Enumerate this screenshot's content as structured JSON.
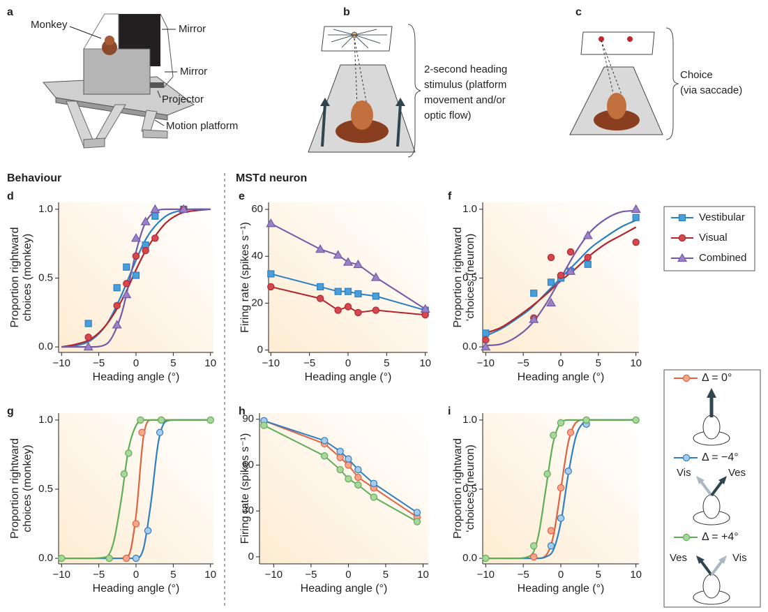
{
  "panels": {
    "a": {
      "letter": "a",
      "labels": [
        "Monkey",
        "Mirror",
        "Mirror",
        "Projector",
        "Motion platform"
      ]
    },
    "b": {
      "letter": "b",
      "caption": [
        "2-second heading",
        "stimulus (platform",
        "movement and/or",
        "optic flow)"
      ]
    },
    "c": {
      "letter": "c",
      "caption": [
        "Choice",
        "(via saccade)"
      ]
    }
  },
  "section_titles": [
    "Behaviour",
    "MSTd neuron"
  ],
  "legend_illustration": {
    "minus4": [
      "Vis",
      "Ves"
    ],
    "plus4": [
      "Ves",
      "Vis"
    ]
  },
  "chart_data": [
    {
      "type": "line",
      "panel": "d",
      "xlabel": "Heading angle (°)",
      "ylabel": [
        "Proportion rightward",
        "choices (monkey)"
      ],
      "xlim": [
        -10.4,
        10.4
      ],
      "ylim": [
        -0.04,
        1.05
      ],
      "xticks": [
        {
          "value": -10,
          "label": "−10"
        },
        {
          "value": -5,
          "label": "−5"
        },
        0,
        5,
        10
      ],
      "yticks": [
        {
          "value": 0,
          "label": "0.0"
        },
        {
          "value": 0.5,
          "label": "0.5"
        },
        {
          "value": 1,
          "label": "1.0"
        }
      ],
      "series": [
        {
          "name": "Vestibular",
          "color": "#2a7fc0",
          "fill": "#4a9fdb",
          "marker": "square",
          "x": [
            -6.4,
            -2.56,
            -1.28,
            0,
            1.28,
            2.56,
            6.4
          ],
          "values": [
            0.17,
            0.43,
            0.58,
            0.52,
            0.74,
            0.95,
            1.0
          ],
          "fit": {
            "x": [
              -10,
              -8,
              -6,
              -4,
              -2,
              -1,
              0,
              1,
              2,
              4,
              6,
              8,
              10
            ],
            "values": [
              0,
              0.01,
              0.05,
              0.16,
              0.37,
              0.5,
              0.63,
              0.75,
              0.84,
              0.95,
              0.99,
              1,
              1
            ]
          }
        },
        {
          "name": "Visual",
          "color": "#b3242c",
          "fill": "#d4484f",
          "marker": "circle",
          "x": [
            -6.4,
            -2.56,
            -1.28,
            0,
            1.28,
            2.56,
            6.4
          ],
          "values": [
            0.07,
            0.3,
            0.46,
            0.66,
            0.7,
            0.79,
            1.0
          ],
          "fit": {
            "x": [
              -10,
              -8,
              -6,
              -4,
              -2,
              -1,
              0,
              1,
              2,
              4,
              6,
              8,
              10
            ],
            "values": [
              0,
              0.02,
              0.06,
              0.16,
              0.33,
              0.44,
              0.56,
              0.67,
              0.76,
              0.9,
              0.97,
              0.99,
              1
            ]
          }
        },
        {
          "name": "Combined",
          "color": "#7659a6",
          "fill": "#9a82c8",
          "marker": "triangle",
          "x": [
            -6.4,
            -2.56,
            -1.28,
            0,
            1.28,
            2.56,
            6.4
          ],
          "values": [
            0,
            0.16,
            0.38,
            0.79,
            0.91,
            1.0,
            1.0
          ],
          "fit": {
            "x": [
              -10,
              -8,
              -6,
              -4,
              -2,
              -1,
              0,
              1,
              2,
              4,
              6,
              8,
              10
            ],
            "values": [
              0,
              0,
              0,
              0.02,
              0.23,
              0.45,
              0.69,
              0.87,
              0.96,
              1,
              1,
              1,
              1
            ]
          }
        }
      ]
    },
    {
      "type": "line",
      "panel": "e",
      "xlabel": "Heading angle (°)",
      "ylabel": [
        "Firing rate (spikes s⁻¹)"
      ],
      "xlim": [
        -10.3,
        10.3
      ],
      "ylim": [
        -1,
        63
      ],
      "xticks": [
        {
          "value": -10,
          "label": "−10"
        },
        {
          "value": -5,
          "label": "−5"
        },
        0,
        5,
        10
      ],
      "yticks": [
        0,
        20,
        40,
        60
      ],
      "series": [
        {
          "color": "#2a7fc0",
          "fill": "#4a9fdb",
          "marker": "square",
          "x": [
            -10,
            -3.6,
            -1.3,
            0,
            1.3,
            3.6,
            10
          ],
          "values": [
            32.5,
            27,
            25,
            25,
            24,
            23,
            17
          ]
        },
        {
          "color": "#b3242c",
          "fill": "#d4484f",
          "marker": "circle",
          "x": [
            -10,
            -3.6,
            -1.3,
            0,
            1.3,
            3.6,
            10
          ],
          "values": [
            27,
            22,
            17,
            18.5,
            16,
            17,
            15
          ]
        },
        {
          "color": "#7659a6",
          "fill": "#9a82c8",
          "marker": "triangle",
          "x": [
            -10,
            -3.6,
            -1.3,
            0,
            1.3,
            3.6,
            10
          ],
          "values": [
            54,
            43,
            40.5,
            37.5,
            36.5,
            31,
            17.5
          ]
        }
      ]
    },
    {
      "type": "line",
      "panel": "f",
      "xlabel": "Heading angle (°)",
      "ylabel": [
        "Proportion rightward",
        "‘choices’ (neuron)"
      ],
      "xlim": [
        -10.4,
        10.4
      ],
      "ylim": [
        -0.04,
        1.05
      ],
      "xticks": [
        {
          "value": -10,
          "label": "−10"
        },
        {
          "value": -5,
          "label": "−5"
        },
        0,
        5,
        10
      ],
      "yticks": [
        {
          "value": 0,
          "label": "0.0"
        },
        {
          "value": 0.5,
          "label": "0.5"
        },
        {
          "value": 1,
          "label": "1.0"
        }
      ],
      "series": [
        {
          "color": "#2a7fc0",
          "fill": "#4a9fdb",
          "marker": "square",
          "x": [
            -10,
            -3.6,
            -1.3,
            0,
            1.3,
            3.6,
            10
          ],
          "values": [
            0.1,
            0.39,
            0.47,
            0.5,
            0.55,
            0.6,
            0.94
          ],
          "fit": {
            "x": [
              -10,
              -8,
              -6,
              -4,
              -2,
              0,
              2,
              4,
              6,
              8,
              10
            ],
            "values": [
              0.08,
              0.13,
              0.2,
              0.28,
              0.39,
              0.5,
              0.61,
              0.72,
              0.8,
              0.87,
              0.92
            ]
          }
        },
        {
          "color": "#b3242c",
          "fill": "#d4484f",
          "marker": "circle",
          "x": [
            -10,
            -3.6,
            -1.3,
            0,
            1.3,
            3.6,
            10
          ],
          "values": [
            0.05,
            0.21,
            0.65,
            0.52,
            0.69,
            0.65,
            0.76
          ],
          "fit": {
            "x": [
              -10,
              -8,
              -6,
              -4,
              -2,
              0,
              2,
              4,
              6,
              8,
              10
            ],
            "values": [
              0.1,
              0.14,
              0.21,
              0.29,
              0.38,
              0.48,
              0.57,
              0.67,
              0.75,
              0.81,
              0.87
            ]
          }
        },
        {
          "color": "#7659a6",
          "fill": "#9a82c8",
          "marker": "triangle",
          "x": [
            -10,
            -3.6,
            -1.3,
            1.3,
            3.6,
            10
          ],
          "values": [
            0,
            0.2,
            0.32,
            0.55,
            0.81,
            1.0
          ],
          "fit": {
            "x": [
              -10,
              -8,
              -6,
              -4,
              -2,
              0,
              2,
              4,
              6,
              8,
              10
            ],
            "values": [
              0.01,
              0.02,
              0.07,
              0.16,
              0.31,
              0.5,
              0.69,
              0.84,
              0.93,
              0.98,
              0.99
            ]
          }
        }
      ]
    },
    {
      "type": "line",
      "panel": "g",
      "xlabel": "Heading angle (°)",
      "ylabel": [
        "Proportion rightward",
        "choices (monkey)"
      ],
      "xlim": [
        -10.4,
        10.4
      ],
      "ylim": [
        -0.04,
        1.05
      ],
      "xticks": [
        {
          "value": -10,
          "label": "−10"
        },
        {
          "value": -5,
          "label": "−5"
        },
        0,
        5,
        10
      ],
      "yticks": [
        {
          "value": 0,
          "label": "0.0"
        },
        {
          "value": 0.5,
          "label": "0.5"
        },
        {
          "value": 1,
          "label": "1.0"
        }
      ],
      "series": [
        {
          "name": "Δ = 0°",
          "color": "#e0623f",
          "fill": "#f5a68c",
          "marker": "circle",
          "x": [
            -1.3,
            0,
            0.8,
            3.4
          ],
          "values": [
            0,
            0.25,
            0.91,
            1.0
          ],
          "fit": {
            "x": [
              -10,
              -6,
              -4,
              -3,
              -2,
              -1,
              0,
              1,
              2,
              3,
              4,
              5,
              6,
              10
            ],
            "values": [
              0,
              0,
              0,
              0,
              0,
              0.02,
              0.31,
              0.88,
              1,
              1,
              1,
              1,
              1,
              1
            ]
          }
        },
        {
          "name": "Δ = −4°",
          "color": "#2f7fc1",
          "fill": "#a7cbec",
          "marker": "circle",
          "x": [
            0,
            1.6,
            3.2
          ],
          "values": [
            0,
            0.2,
            0.91
          ],
          "fit": {
            "x": [
              -10,
              -6,
              -4,
              -3,
              -2,
              -1,
              0,
              1,
              2,
              3,
              4,
              5,
              6,
              10
            ],
            "values": [
              0,
              0,
              0,
              0,
              0,
              0,
              0,
              0.07,
              0.4,
              0.84,
              0.99,
              1,
              1,
              1
            ]
          }
        },
        {
          "name": "Δ = +4°",
          "color": "#5fae55",
          "fill": "#a9d69d",
          "marker": "circle",
          "x": [
            -10,
            -3.6,
            -1.6,
            -1.0,
            0.6,
            3.4,
            10
          ],
          "values": [
            0,
            0,
            0.61,
            0.76,
            1.0,
            1.0,
            1.0
          ],
          "fit": {
            "x": [
              -10,
              -6,
              -4,
              -3,
              -2,
              -1,
              0,
              1,
              2,
              3,
              4,
              5,
              6,
              10
            ],
            "values": [
              0,
              0,
              0.01,
              0.12,
              0.42,
              0.79,
              0.96,
              1,
              1,
              1,
              1,
              1,
              1,
              1
            ]
          }
        }
      ]
    },
    {
      "type": "line",
      "panel": "h",
      "xlabel": "Heading angle (°)",
      "ylabel": [
        "Firing rate (spikes s⁻¹)"
      ],
      "xlim": [
        -11.9,
        10.7
      ],
      "ylim": [
        -4.6,
        94
      ],
      "xticks": [
        {
          "value": -10,
          "label": "−10"
        },
        {
          "value": -5,
          "label": "−5"
        },
        0,
        5,
        10
      ],
      "yticks": [
        0,
        30,
        60,
        90
      ],
      "series": [
        {
          "color": "#e0623f",
          "fill": "#f5a68c",
          "marker": "circle",
          "x": [
            -11.3,
            -3.2,
            -1.1,
            0,
            1.3,
            3.4,
            9.2
          ],
          "values": [
            89,
            74,
            65,
            60,
            52,
            45,
            26
          ]
        },
        {
          "color": "#2f7fc1",
          "fill": "#a7cbec",
          "marker": "circle",
          "x": [
            -11.3,
            -3.2,
            -1.1,
            0,
            1.3,
            3.4,
            9.2
          ],
          "values": [
            89,
            76,
            69,
            64,
            57,
            48,
            29
          ]
        },
        {
          "color": "#5fae55",
          "fill": "#a9d69d",
          "marker": "circle",
          "x": [
            -11.3,
            -3.2,
            -1.1,
            0,
            1.3,
            3.4,
            9.2
          ],
          "values": [
            86,
            66,
            57,
            51,
            47,
            39,
            23
          ]
        }
      ]
    },
    {
      "type": "line",
      "panel": "i",
      "xlabel": "Heading angle (°)",
      "ylabel": [
        "Proportion rightward",
        "‘choices’ (neuron)"
      ],
      "xlim": [
        -10.4,
        10.4
      ],
      "ylim": [
        -0.04,
        1.05
      ],
      "xticks": [
        {
          "value": -10,
          "label": "−10"
        },
        {
          "value": -5,
          "label": "−5"
        },
        0,
        5,
        10
      ],
      "yticks": [
        {
          "value": 0,
          "label": "0.0"
        },
        {
          "value": 0.5,
          "label": "0.5"
        },
        {
          "value": 1,
          "label": "1.0"
        }
      ],
      "series": [
        {
          "color": "#e0623f",
          "fill": "#f5a68c",
          "marker": "circle",
          "x": [
            -3.6,
            -1.3,
            0,
            1.3,
            3.4
          ],
          "values": [
            0.01,
            0.2,
            0.51,
            0.91,
            1.0
          ],
          "fit": {
            "x": [
              -10,
              -6,
              -4,
              -3,
              -2,
              -1,
              0,
              1,
              2,
              3,
              4,
              5,
              6,
              10
            ],
            "values": [
              0,
              0,
              0,
              0,
              0.02,
              0.16,
              0.5,
              0.84,
              0.98,
              1,
              1,
              1,
              1,
              1
            ]
          }
        },
        {
          "color": "#2f7fc1",
          "fill": "#a7cbec",
          "marker": "circle",
          "x": [
            -1.3,
            0,
            1,
            3.4
          ],
          "values": [
            0.09,
            0.29,
            0.63,
            0.97
          ],
          "fit": {
            "x": [
              -10,
              -6,
              -4,
              -3,
              -2,
              -1,
              0,
              1,
              2,
              3,
              4,
              5,
              6,
              10
            ],
            "values": [
              0,
              0,
              0,
              0,
              0.01,
              0.06,
              0.26,
              0.61,
              0.88,
              0.98,
              1,
              1,
              1,
              1
            ]
          }
        },
        {
          "color": "#5fae55",
          "fill": "#a9d69d",
          "marker": "circle",
          "x": [
            -10,
            -3.6,
            -1.8,
            -1,
            0,
            3.4,
            10
          ],
          "values": [
            0,
            0.09,
            0.61,
            0.89,
            0.98,
            1.0,
            1.0
          ],
          "fit": {
            "x": [
              -10,
              -6,
              -4,
              -3,
              -2,
              -1,
              0,
              1,
              2,
              3,
              4,
              5,
              6,
              10
            ],
            "values": [
              0,
              0,
              0.02,
              0.16,
              0.5,
              0.84,
              0.98,
              1,
              1,
              1,
              1,
              1,
              1,
              1
            ]
          }
        }
      ]
    }
  ]
}
